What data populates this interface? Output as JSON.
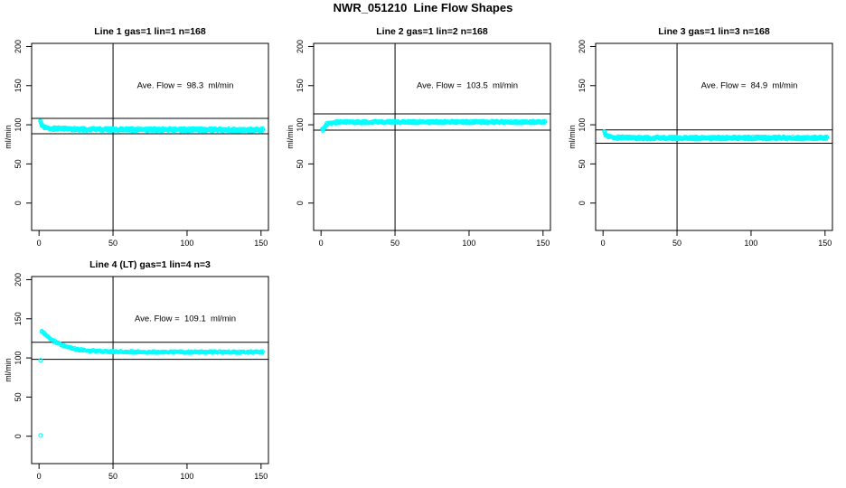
{
  "chart_data": {
    "type": "scatter",
    "title": "NWR_051210  Line Flow Shapes",
    "point_color": "#00FFFF",
    "axis_color": "#000000",
    "background_color": "#FFFFFF",
    "legend": "none",
    "x_axis": {
      "ticks": [
        0,
        50,
        100,
        150
      ],
      "range": [
        -5,
        155
      ]
    },
    "y_axis": {
      "ticks": [
        0,
        50,
        100,
        150,
        200
      ],
      "range": [
        -35,
        204
      ],
      "label": "ml/min"
    },
    "vline_x": 50,
    "annotation_data_pos": {
      "x": 99,
      "y": 150
    },
    "panels": [
      {
        "title": "Line 1 gas=1 lin=1 n=168",
        "gas": 1,
        "lin": 1,
        "n": 168,
        "ave_flow": 98.3,
        "ave_flow_label": "Ave. Flow =  98.3  ml/min",
        "ref_lines": [
          108.1,
          88.5
        ],
        "x_range": [
          1,
          151
        ],
        "profile": [
          [
            1,
            103.5
          ],
          [
            2,
            100.5
          ],
          [
            3,
            98
          ],
          [
            4,
            96.5
          ],
          [
            6,
            95.5
          ],
          [
            10,
            95
          ],
          [
            20,
            94.5
          ],
          [
            40,
            94
          ],
          [
            80,
            93.8
          ],
          [
            120,
            93.6
          ],
          [
            151,
            93.5
          ]
        ],
        "band_halfwidth": 1.9,
        "overdraw": 3,
        "outliers": []
      },
      {
        "title": "Line 2 gas=1 lin=2 n=168",
        "gas": 1,
        "lin": 2,
        "n": 168,
        "ave_flow": 103.5,
        "ave_flow_label": "Ave. Flow =  103.5  ml/min",
        "ref_lines": [
          113.9,
          93.2
        ],
        "x_range": [
          1,
          151
        ],
        "profile": [
          [
            1,
            93.5
          ],
          [
            2,
            96
          ],
          [
            3,
            98.5
          ],
          [
            4,
            100.5
          ],
          [
            5,
            101.5
          ],
          [
            7,
            102.5
          ],
          [
            10,
            103
          ],
          [
            20,
            103.3
          ],
          [
            50,
            103.5
          ],
          [
            100,
            103.5
          ],
          [
            151,
            103.5
          ]
        ],
        "band_halfwidth": 1.5,
        "overdraw": 3,
        "outliers": []
      },
      {
        "title": "Line 3 gas=1 lin=3 n=168",
        "gas": 1,
        "lin": 3,
        "n": 168,
        "ave_flow": 84.9,
        "ave_flow_label": "Ave. Flow =  84.9  ml/min",
        "ref_lines": [
          93.4,
          76.4
        ],
        "x_range": [
          1,
          151
        ],
        "profile": [
          [
            1,
            90
          ],
          [
            2,
            87.5
          ],
          [
            3,
            86
          ],
          [
            4,
            85
          ],
          [
            6,
            84
          ],
          [
            10,
            83.5
          ],
          [
            20,
            83.2
          ],
          [
            50,
            83
          ],
          [
            100,
            83.2
          ],
          [
            151,
            83.3
          ]
        ],
        "band_halfwidth": 1.8,
        "overdraw": 3,
        "outliers": []
      },
      {
        "title": "Line 4 (LT) gas=1 lin=4 n=3",
        "gas": 1,
        "lin": 4,
        "n": 3,
        "ave_flow": 109.1,
        "ave_flow_label": "Ave. Flow =  109.1  ml/min",
        "ref_lines": [
          120,
          98.2
        ],
        "x_range": [
          2,
          151
        ],
        "profile": [
          [
            2,
            134.5
          ],
          [
            3,
            132.5
          ],
          [
            4,
            130.5
          ],
          [
            5,
            128.5
          ],
          [
            6,
            127
          ],
          [
            8,
            124
          ],
          [
            10,
            121.5
          ],
          [
            12,
            119.5
          ],
          [
            15,
            116.5
          ],
          [
            18,
            114.5
          ],
          [
            21,
            113
          ],
          [
            25,
            111.3
          ],
          [
            30,
            109.8
          ],
          [
            35,
            109
          ],
          [
            40,
            108.5
          ],
          [
            50,
            108
          ],
          [
            70,
            107.6
          ],
          [
            100,
            107.5
          ],
          [
            151,
            107.5
          ]
        ],
        "band_halfwidth": 1.1,
        "overdraw": 2,
        "outliers": [
          [
            1,
            97
          ],
          [
            1,
            1
          ]
        ]
      }
    ]
  }
}
